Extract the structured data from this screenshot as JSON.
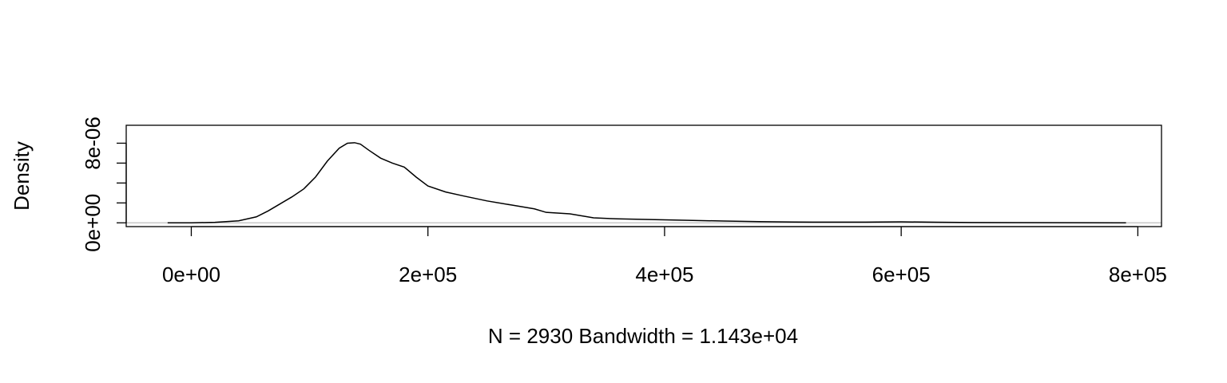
{
  "chart_data": {
    "type": "line",
    "title": "",
    "xlabel": "N = 2930   Bandwidth = 1.143e+04",
    "ylabel": "Density",
    "xlim": [
      -55000,
      820000
    ],
    "ylim": [
      -3.8e-07,
      9.8e-06
    ],
    "x_ticks": [
      0,
      200000,
      400000,
      600000,
      800000
    ],
    "x_tick_labels": [
      "0e+00",
      "2e+05",
      "4e+05",
      "6e+05",
      "8e+05"
    ],
    "y_ticks": [
      0,
      2e-06,
      4e-06,
      6e-06,
      8e-06
    ],
    "y_tick_labels": [
      "0e+00",
      "",
      "",
      "",
      "8e-06"
    ],
    "grid": false,
    "zero_line": true,
    "zero_line_color": "#bebebe",
    "line_color": "#000000",
    "series": [
      {
        "x": [
          -20000,
          0,
          20000,
          40000,
          55000,
          65000,
          75000,
          85000,
          95000,
          105000,
          115000,
          125000,
          132000,
          138000,
          143000,
          150000,
          160000,
          170000,
          180000,
          190000,
          200000,
          215000,
          230000,
          250000,
          270000,
          290000,
          300000,
          320000,
          340000,
          360000,
          380000,
          400000,
          420000,
          450000,
          480000,
          510000,
          540000,
          570000,
          600000,
          630000,
          660000,
          700000,
          750000,
          790000
        ],
        "y": [
          0.0,
          0.0,
          5e-08,
          2e-07,
          6e-07,
          1.2e-06,
          1.9e-06,
          2.6e-06,
          3.4e-06,
          4.6e-06,
          6.2e-06,
          7.5e-06,
          8e-06,
          8.05e-06,
          7.9e-06,
          7.3e-06,
          6.5e-06,
          6e-06,
          5.6e-06,
          4.6e-06,
          3.7e-06,
          3.1e-06,
          2.7e-06,
          2.2e-06,
          1.8e-06,
          1.4e-06,
          1.05e-06,
          9e-07,
          5e-07,
          4e-07,
          3.5e-07,
          3e-07,
          2.5e-07,
          1.8e-07,
          1.2e-07,
          8e-08,
          7e-08,
          7e-08,
          1e-07,
          6e-08,
          3e-08,
          2e-08,
          1e-08,
          0.0
        ]
      }
    ]
  }
}
